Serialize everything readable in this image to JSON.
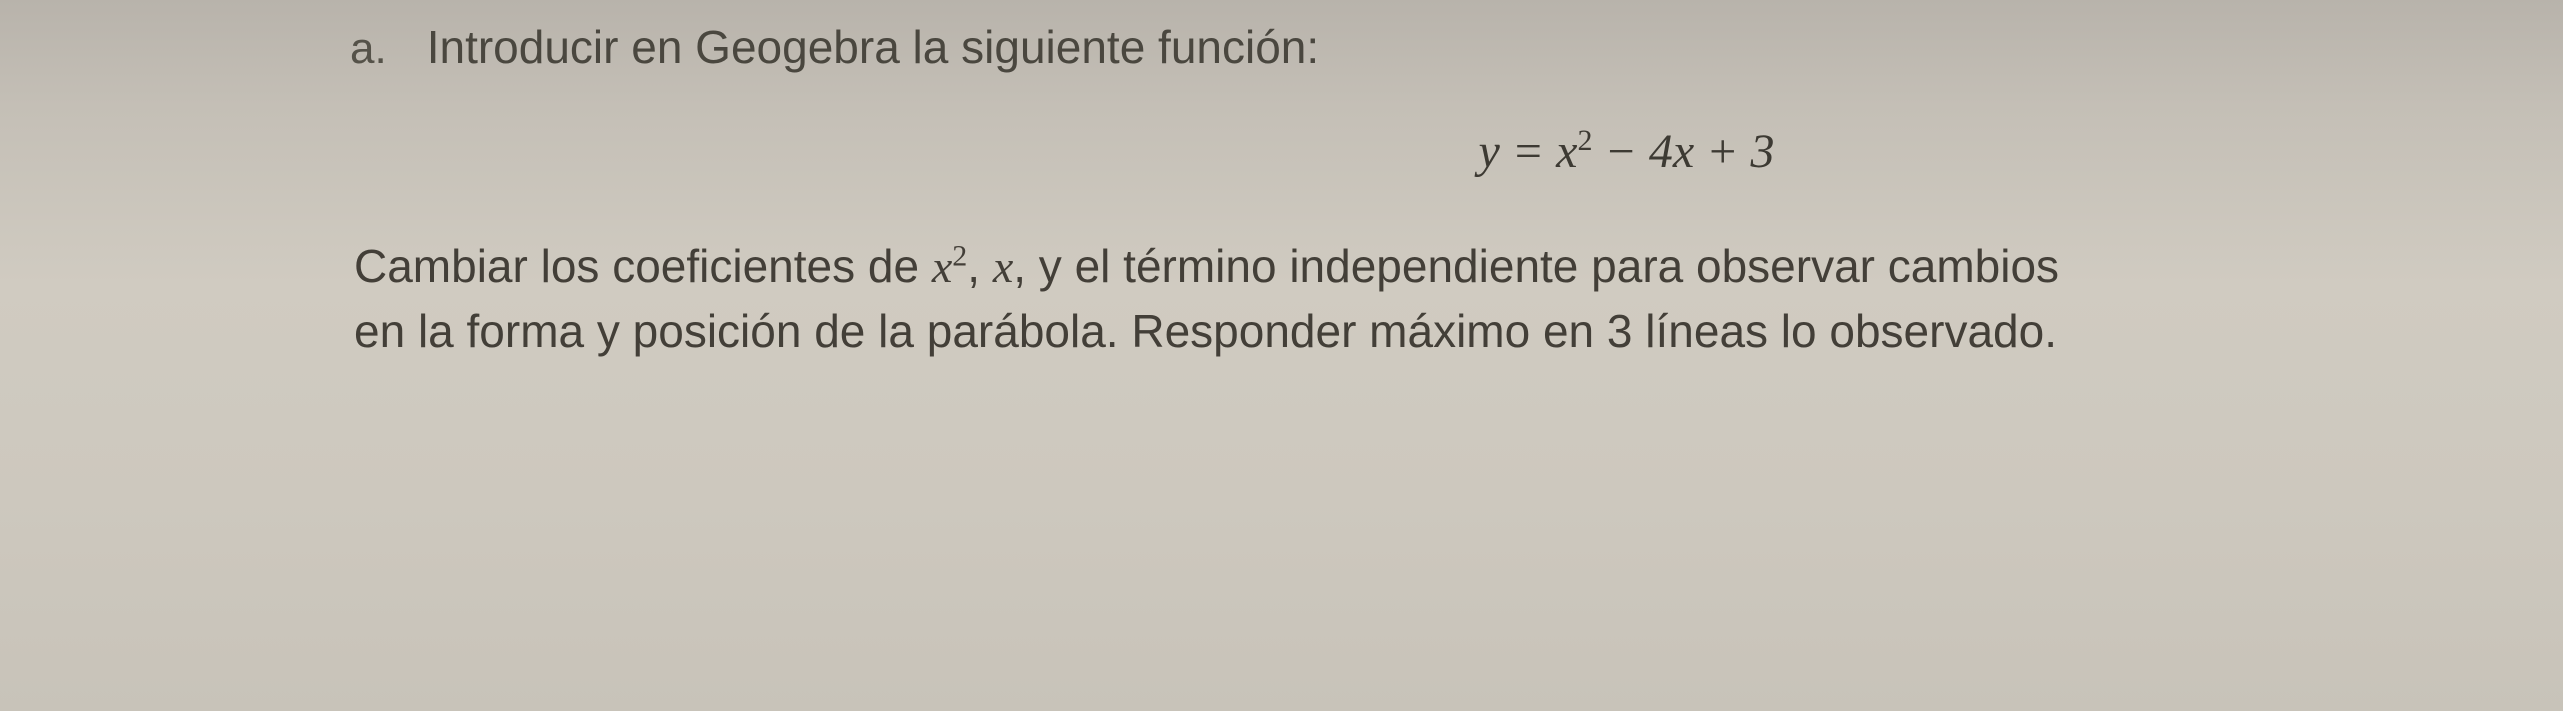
{
  "item": {
    "marker": "a.",
    "instruction": "Introducir en Geogebra la siguiente función:"
  },
  "equation": {
    "lhs_var": "y",
    "equals": " = ",
    "term1_var": "x",
    "term1_exp": "2",
    "term2": " − 4",
    "term2_var": "x",
    "term3": " + 3"
  },
  "body": {
    "part1": "Cambiar los coeficientes de ",
    "var1": "x",
    "var1_exp": "2",
    "comma1": ", ",
    "var2": "x",
    "part2": ", y el término independiente para observar cambios",
    "part3": "en la forma y posición de la parábola. Responder máximo en 3 líneas lo observado."
  },
  "style": {
    "background_gradient_top": "#b8b3ab",
    "background_gradient_bottom": "#c8c3b9",
    "text_color": "#3a3834",
    "instruction_fontsize": 46,
    "equation_fontsize": 48,
    "body_fontsize": 46,
    "font_family_body": "Arial",
    "font_family_math": "Times New Roman"
  }
}
